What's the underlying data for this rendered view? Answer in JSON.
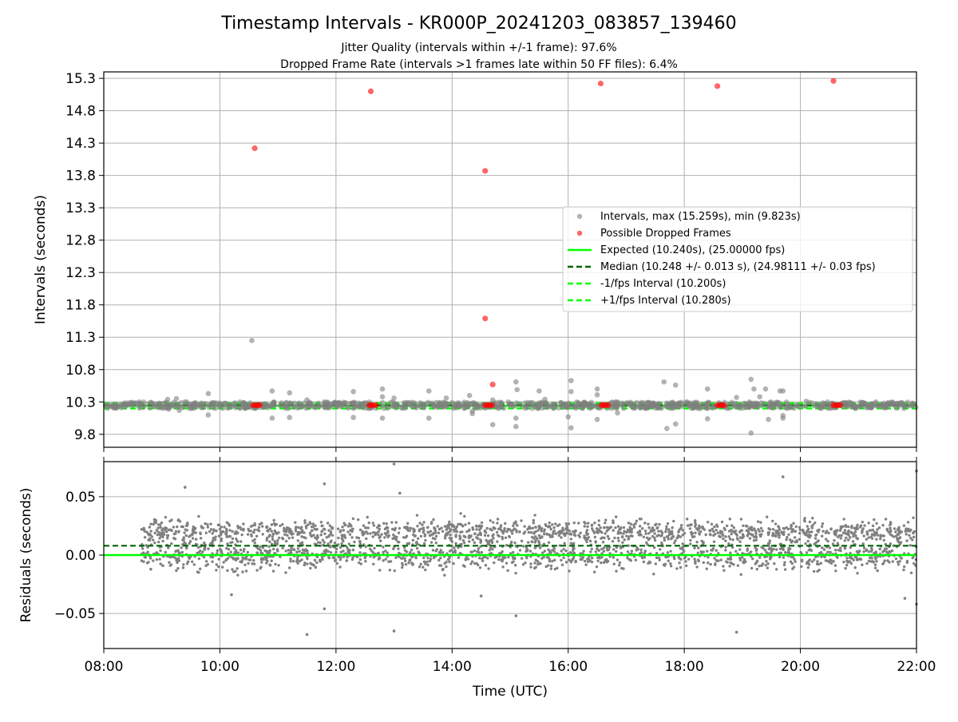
{
  "title": "Timestamp Intervals - KR000P_20241203_083857_139460",
  "subtitle_line1": "Jitter Quality (intervals within +/-1 frame): 97.6%",
  "subtitle_line2": "Dropped Frame Rate (intervals >1 frames late within 50 FF files): 6.4%",
  "colors": {
    "intervals": "#808080",
    "dropped": "#ff0000",
    "expected": "#00ff00",
    "median": "#006400",
    "fps_interval": "#00ff00",
    "residuals": "#808080",
    "grid": "#b0b0b0"
  },
  "chart_data": [
    {
      "type": "scatter",
      "ylabel": "Intervals (seconds)",
      "ylim": [
        9.6,
        15.4
      ],
      "yticks": [
        "9.8",
        "10.3",
        "10.8",
        "11.3",
        "11.8",
        "12.3",
        "12.8",
        "13.3",
        "13.8",
        "14.3",
        "14.8",
        "15.3"
      ],
      "grid": true,
      "legend_position": "center-right",
      "legend": [
        "Intervals, max (15.259s), min (9.823s)",
        "Possible Dropped Frames",
        "Expected (10.240s), (25.00000 fps)",
        "Median (10.248 +/- 0.013 s), (24.98111 +/- 0.03 fps)",
        "-1/fps Interval (10.200s)",
        "+1/fps Interval (10.280s)"
      ],
      "lines": {
        "expected": 10.24,
        "median": 10.248,
        "minus_fps": 10.2,
        "plus_fps": 10.28
      },
      "dense_band": {
        "x_range": [
          8.0,
          22.0
        ],
        "y_range": [
          10.2,
          10.3
        ]
      },
      "intervals_outliers": [
        [
          9.1,
          10.34
        ],
        [
          9.12,
          10.19
        ],
        [
          9.25,
          10.35
        ],
        [
          9.3,
          10.17
        ],
        [
          9.4,
          10.3
        ],
        [
          9.8,
          10.43
        ],
        [
          9.8,
          10.1
        ],
        [
          10.55,
          11.25
        ],
        [
          10.9,
          10.47
        ],
        [
          10.9,
          10.05
        ],
        [
          11.2,
          10.44
        ],
        [
          11.2,
          10.06
        ],
        [
          11.5,
          10.33
        ],
        [
          11.7,
          10.28
        ],
        [
          12.3,
          10.46
        ],
        [
          12.3,
          10.06
        ],
        [
          12.8,
          10.5
        ],
        [
          12.8,
          10.38
        ],
        [
          12.8,
          10.05
        ],
        [
          13.0,
          10.36
        ],
        [
          13.6,
          10.47
        ],
        [
          13.6,
          10.05
        ],
        [
          13.9,
          10.36
        ],
        [
          14.3,
          10.4
        ],
        [
          14.35,
          10.12
        ],
        [
          14.35,
          10.16
        ],
        [
          14.7,
          10.33
        ],
        [
          14.7,
          9.95
        ],
        [
          15.1,
          10.61
        ],
        [
          15.12,
          10.49
        ],
        [
          15.1,
          10.05
        ],
        [
          15.1,
          9.92
        ],
        [
          15.5,
          10.47
        ],
        [
          15.6,
          10.34
        ],
        [
          16.05,
          10.63
        ],
        [
          16.05,
          10.46
        ],
        [
          16.0,
          10.07
        ],
        [
          16.05,
          9.9
        ],
        [
          16.5,
          10.5
        ],
        [
          16.5,
          10.41
        ],
        [
          16.5,
          10.03
        ],
        [
          16.85,
          10.13
        ],
        [
          17.65,
          10.61
        ],
        [
          17.7,
          9.89
        ],
        [
          17.85,
          10.56
        ],
        [
          17.85,
          9.96
        ],
        [
          18.4,
          10.5
        ],
        [
          18.4,
          10.04
        ],
        [
          18.9,
          10.37
        ],
        [
          19.15,
          10.65
        ],
        [
          19.2,
          10.5
        ],
        [
          19.15,
          9.82
        ],
        [
          19.3,
          10.38
        ],
        [
          19.4,
          10.5
        ],
        [
          19.45,
          10.03
        ],
        [
          19.65,
          10.47
        ],
        [
          19.7,
          10.47
        ],
        [
          19.7,
          10.05
        ],
        [
          19.7,
          10.09
        ],
        [
          20.1,
          10.31
        ],
        [
          21.3,
          10.3
        ],
        [
          21.75,
          10.29
        ]
      ],
      "dropped_frames": [
        [
          10.6,
          14.22
        ],
        [
          12.6,
          15.1
        ],
        [
          14.57,
          13.87
        ],
        [
          14.57,
          11.59
        ],
        [
          14.7,
          10.57
        ],
        [
          16.56,
          15.22
        ],
        [
          18.57,
          15.18
        ],
        [
          20.57,
          15.26
        ],
        [
          10.57,
          10.25
        ],
        [
          10.6,
          10.25
        ],
        [
          10.63,
          10.25
        ],
        [
          10.66,
          10.25
        ],
        [
          10.69,
          10.25
        ],
        [
          12.57,
          10.25
        ],
        [
          12.6,
          10.25
        ],
        [
          12.63,
          10.25
        ],
        [
          12.66,
          10.25
        ],
        [
          12.69,
          10.25
        ],
        [
          14.57,
          10.25
        ],
        [
          14.6,
          10.25
        ],
        [
          14.63,
          10.25
        ],
        [
          14.66,
          10.25
        ],
        [
          14.69,
          10.25
        ],
        [
          16.57,
          10.25
        ],
        [
          16.6,
          10.25
        ],
        [
          16.63,
          10.25
        ],
        [
          16.66,
          10.25
        ],
        [
          16.69,
          10.25
        ],
        [
          18.57,
          10.25
        ],
        [
          18.6,
          10.25
        ],
        [
          18.63,
          10.25
        ],
        [
          18.66,
          10.25
        ],
        [
          18.69,
          10.25
        ],
        [
          20.57,
          10.25
        ],
        [
          20.6,
          10.25
        ],
        [
          20.63,
          10.25
        ],
        [
          20.66,
          10.25
        ],
        [
          20.69,
          10.25
        ]
      ]
    },
    {
      "type": "scatter",
      "xlabel": "Time (UTC)",
      "ylabel": "Residuals (seconds)",
      "xlim": [
        8.0,
        22.0
      ],
      "xticks": [
        "08:00",
        "10:00",
        "12:00",
        "14:00",
        "16:00",
        "18:00",
        "20:00",
        "22:00"
      ],
      "ylim": [
        -0.08,
        0.08
      ],
      "yticks": [
        "−0.05",
        "0.00",
        "0.05"
      ],
      "grid": true,
      "lines": {
        "expected": 0.0,
        "median": 0.008
      },
      "dense_band": {
        "x_range": [
          8.65,
          22.0
        ],
        "y_range": [
          -0.03,
          0.04
        ]
      },
      "residual_outliers": [
        [
          9.4,
          0.058
        ],
        [
          10.2,
          -0.034
        ],
        [
          11.5,
          -0.068
        ],
        [
          11.8,
          0.061
        ],
        [
          11.8,
          -0.046
        ],
        [
          13.0,
          0.078
        ],
        [
          13.1,
          0.053
        ],
        [
          13.0,
          -0.065
        ],
        [
          14.5,
          -0.035
        ],
        [
          15.1,
          -0.052
        ],
        [
          18.9,
          -0.066
        ],
        [
          19.7,
          0.067
        ],
        [
          21.8,
          -0.037
        ],
        [
          22.0,
          0.072
        ],
        [
          22.0,
          -0.042
        ]
      ]
    }
  ]
}
